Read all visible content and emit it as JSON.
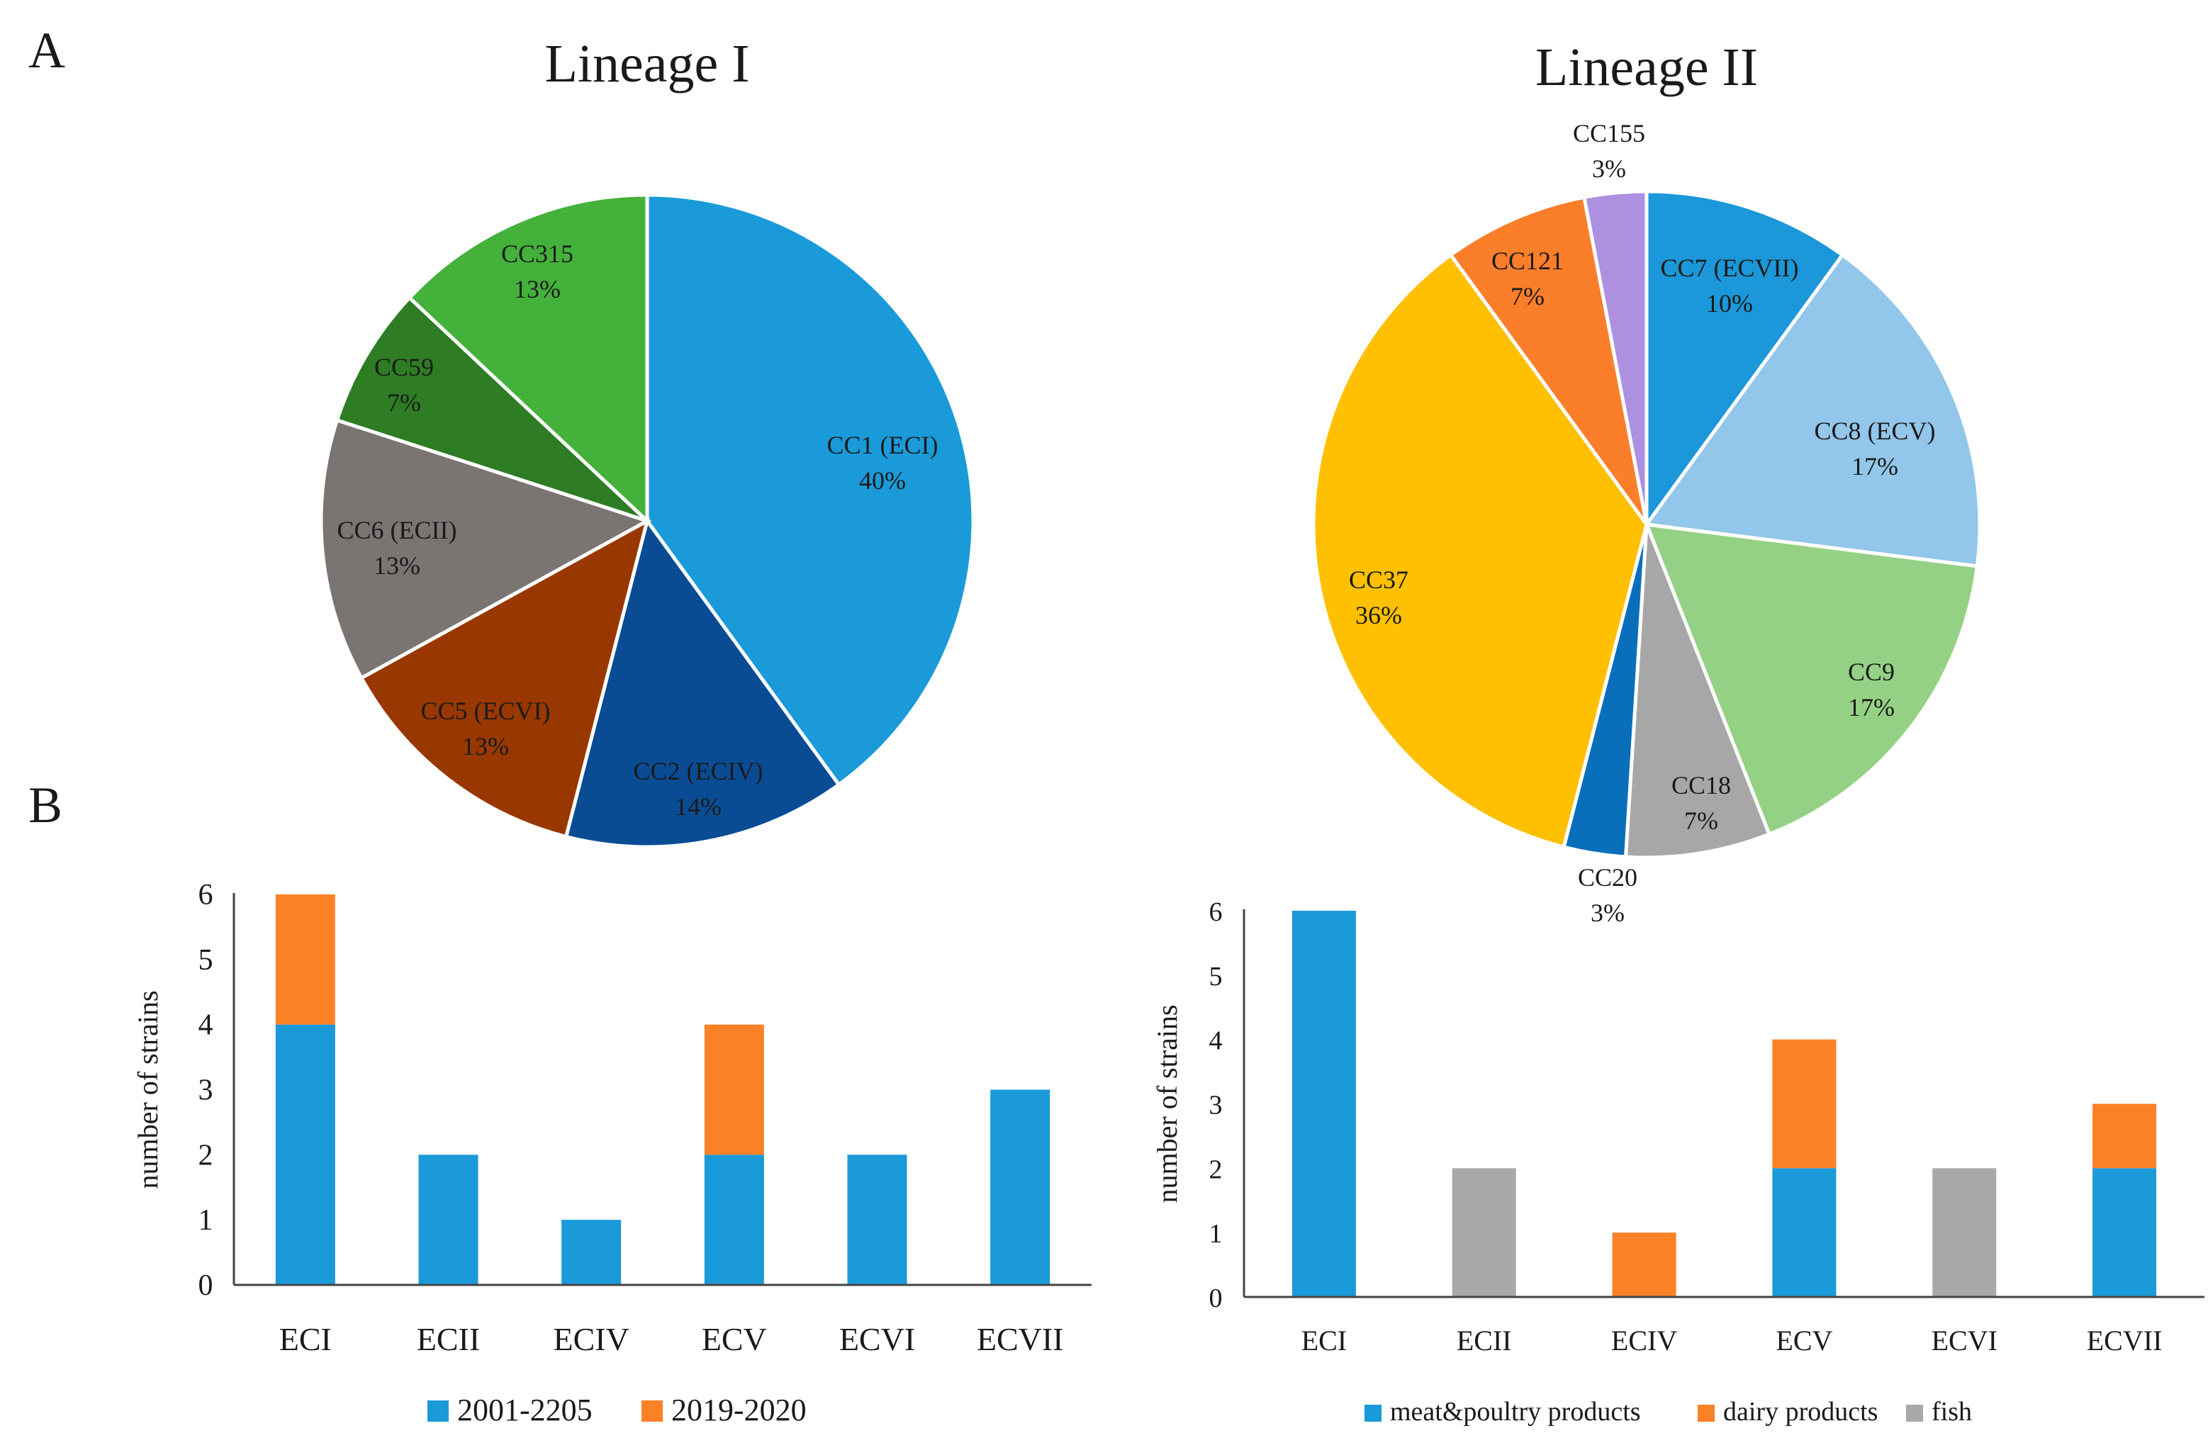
{
  "panel_labels": {
    "a": "A",
    "b": "B"
  },
  "chart_data": [
    {
      "type": "pie",
      "title": "Lineage I",
      "slices": [
        {
          "label": "CC1 (ECI)",
          "pct_label": "40%",
          "value": 40,
          "color": "#1a9ad9"
        },
        {
          "label": "CC2 (ECIV)",
          "pct_label": "14%",
          "value": 14,
          "color": "#0a4c94"
        },
        {
          "label": "CC5 (ECVI)",
          "pct_label": "13%",
          "value": 13,
          "color": "#983800"
        },
        {
          "label": "CC6 (ECII)",
          "pct_label": "13%",
          "value": 13,
          "color": "#7a7472"
        },
        {
          "label": "CC59",
          "pct_label": "7%",
          "value": 7,
          "color": "#2e7d25"
        },
        {
          "label": "CC315",
          "pct_label": "13%",
          "value": 13,
          "color": "#44b13a"
        }
      ]
    },
    {
      "type": "pie",
      "title": "Lineage II",
      "slices": [
        {
          "label": "CC7 (ECVII)",
          "pct_label": "10%",
          "value": 10,
          "color": "#1c97d9"
        },
        {
          "label": "CC8 (ECV)",
          "pct_label": "17%",
          "value": 17,
          "color": "#92c6ea"
        },
        {
          "label": "CC9",
          "pct_label": "17%",
          "value": 17,
          "color": "#95d184"
        },
        {
          "label": "CC18",
          "pct_label": "7%",
          "value": 7,
          "color": "#a7a7a7"
        },
        {
          "label": "CC20",
          "pct_label": "3%",
          "value": 3,
          "color": "#0a6fba"
        },
        {
          "label": "CC37",
          "pct_label": "36%",
          "value": 36,
          "color": "#ffc001"
        },
        {
          "label": "CC121",
          "pct_label": "7%",
          "value": 7,
          "color": "#fb7e2b"
        },
        {
          "label": "CC155",
          "pct_label": "3%",
          "value": 3,
          "color": "#ad91e0"
        }
      ]
    },
    {
      "type": "bar",
      "stacked": true,
      "ylabel": "number of strains",
      "ylim": [
        0,
        6
      ],
      "yticks": [
        "0",
        "1",
        "2",
        "3",
        "4",
        "5",
        "6"
      ],
      "categories": [
        "ECI",
        "ECII",
        "ECIV",
        "ECV",
        "ECVI",
        "ECVII"
      ],
      "series": [
        {
          "name": "2001-2205",
          "color": "#1b9ad9",
          "values": [
            4,
            2,
            1,
            2,
            2,
            3
          ]
        },
        {
          "name": "2019-2020",
          "color": "#fb8127",
          "values": [
            2,
            0,
            0,
            2,
            0,
            0
          ]
        }
      ],
      "legend": "bottom"
    },
    {
      "type": "bar",
      "stacked": true,
      "ylabel": "number of strains",
      "ylim": [
        0,
        6
      ],
      "yticks": [
        "0",
        "1",
        "2",
        "3",
        "4",
        "5",
        "6"
      ],
      "categories": [
        "ECI",
        "ECII",
        "ECIV",
        "ECV",
        "ECVI",
        "ECVII"
      ],
      "series": [
        {
          "name": "meat&poultry products",
          "color": "#1b9ad9",
          "values": [
            6,
            0,
            0,
            2,
            0,
            2
          ]
        },
        {
          "name": "dairy products",
          "color": "#fb8127",
          "values": [
            0,
            0,
            1,
            2,
            0,
            1
          ]
        },
        {
          "name": "fish",
          "color": "#a9a9a9",
          "values": [
            0,
            2,
            0,
            0,
            2,
            0
          ]
        }
      ],
      "legend": "bottom"
    }
  ]
}
